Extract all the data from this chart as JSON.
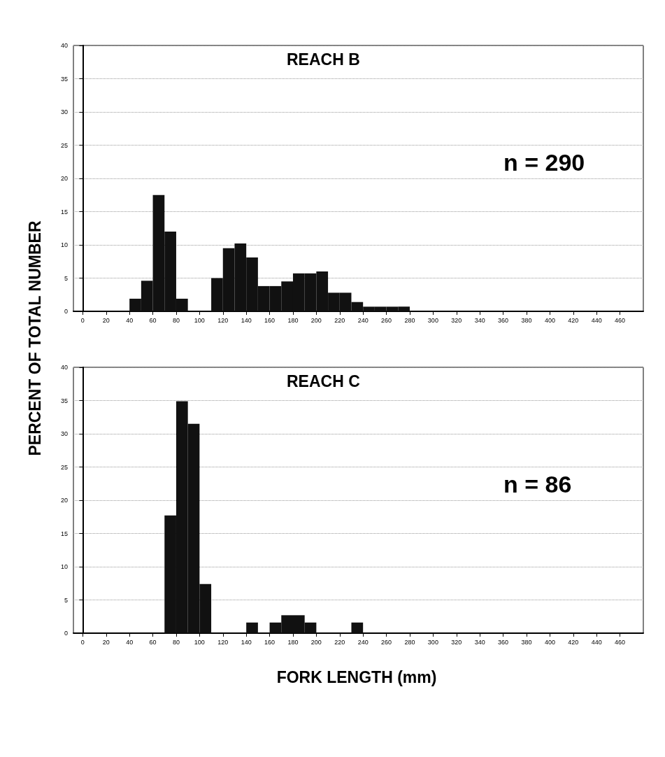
{
  "chart_data": [
    {
      "type": "histogram",
      "title": "REACH B",
      "ylabel": "PERCENT OF TOTAL NUMBER",
      "annotations": [
        "n = 290"
      ],
      "color": "#111111",
      "bins": [
        40,
        50,
        60,
        70,
        80,
        90,
        100,
        110,
        120,
        130,
        140,
        150,
        160,
        170,
        180,
        190,
        200,
        210,
        220,
        230,
        240,
        250,
        260,
        270,
        280
      ],
      "values": [
        1.9,
        4.6,
        17.5,
        12.0,
        1.9,
        0,
        0,
        5.0,
        9.5,
        10.2,
        8.1,
        3.8,
        3.8,
        4.5,
        5.7,
        5.7,
        6.0,
        2.8,
        2.8,
        1.4,
        0.7,
        0.7,
        0.7,
        0.7
      ],
      "xlim": [
        -8,
        480
      ],
      "xticks": [
        0,
        20,
        40,
        60,
        80,
        100,
        120,
        140,
        160,
        180,
        200,
        220,
        240,
        260,
        280,
        300,
        320,
        340,
        360,
        380,
        400,
        420,
        440,
        460
      ],
      "ylim": [
        0,
        40
      ],
      "yticks": [
        0,
        5,
        10,
        15,
        20,
        25,
        30,
        35,
        40
      ],
      "grid": "y"
    },
    {
      "type": "histogram",
      "title": "REACH C",
      "xlabel": "FORK LENGTH (mm)",
      "annotations": [
        "n = 86"
      ],
      "color": "#111111",
      "bins": [
        70,
        80,
        90,
        100,
        110,
        120,
        130,
        140,
        150,
        160,
        170,
        180,
        190,
        200,
        210,
        220,
        230,
        240
      ],
      "values": [
        17.7,
        34.9,
        31.5,
        7.4,
        0,
        0,
        0,
        1.6,
        0,
        1.6,
        2.7,
        2.7,
        1.6,
        0,
        0,
        0,
        1.6
      ],
      "xlim": [
        -8,
        480
      ],
      "xticks": [
        0,
        20,
        40,
        60,
        80,
        100,
        120,
        140,
        160,
        180,
        200,
        220,
        240,
        260,
        280,
        300,
        320,
        340,
        360,
        380,
        400,
        420,
        440,
        460
      ],
      "ylim": [
        0,
        40
      ],
      "yticks": [
        0,
        5,
        10,
        15,
        20,
        25,
        30,
        35,
        40
      ],
      "grid": "y"
    }
  ]
}
